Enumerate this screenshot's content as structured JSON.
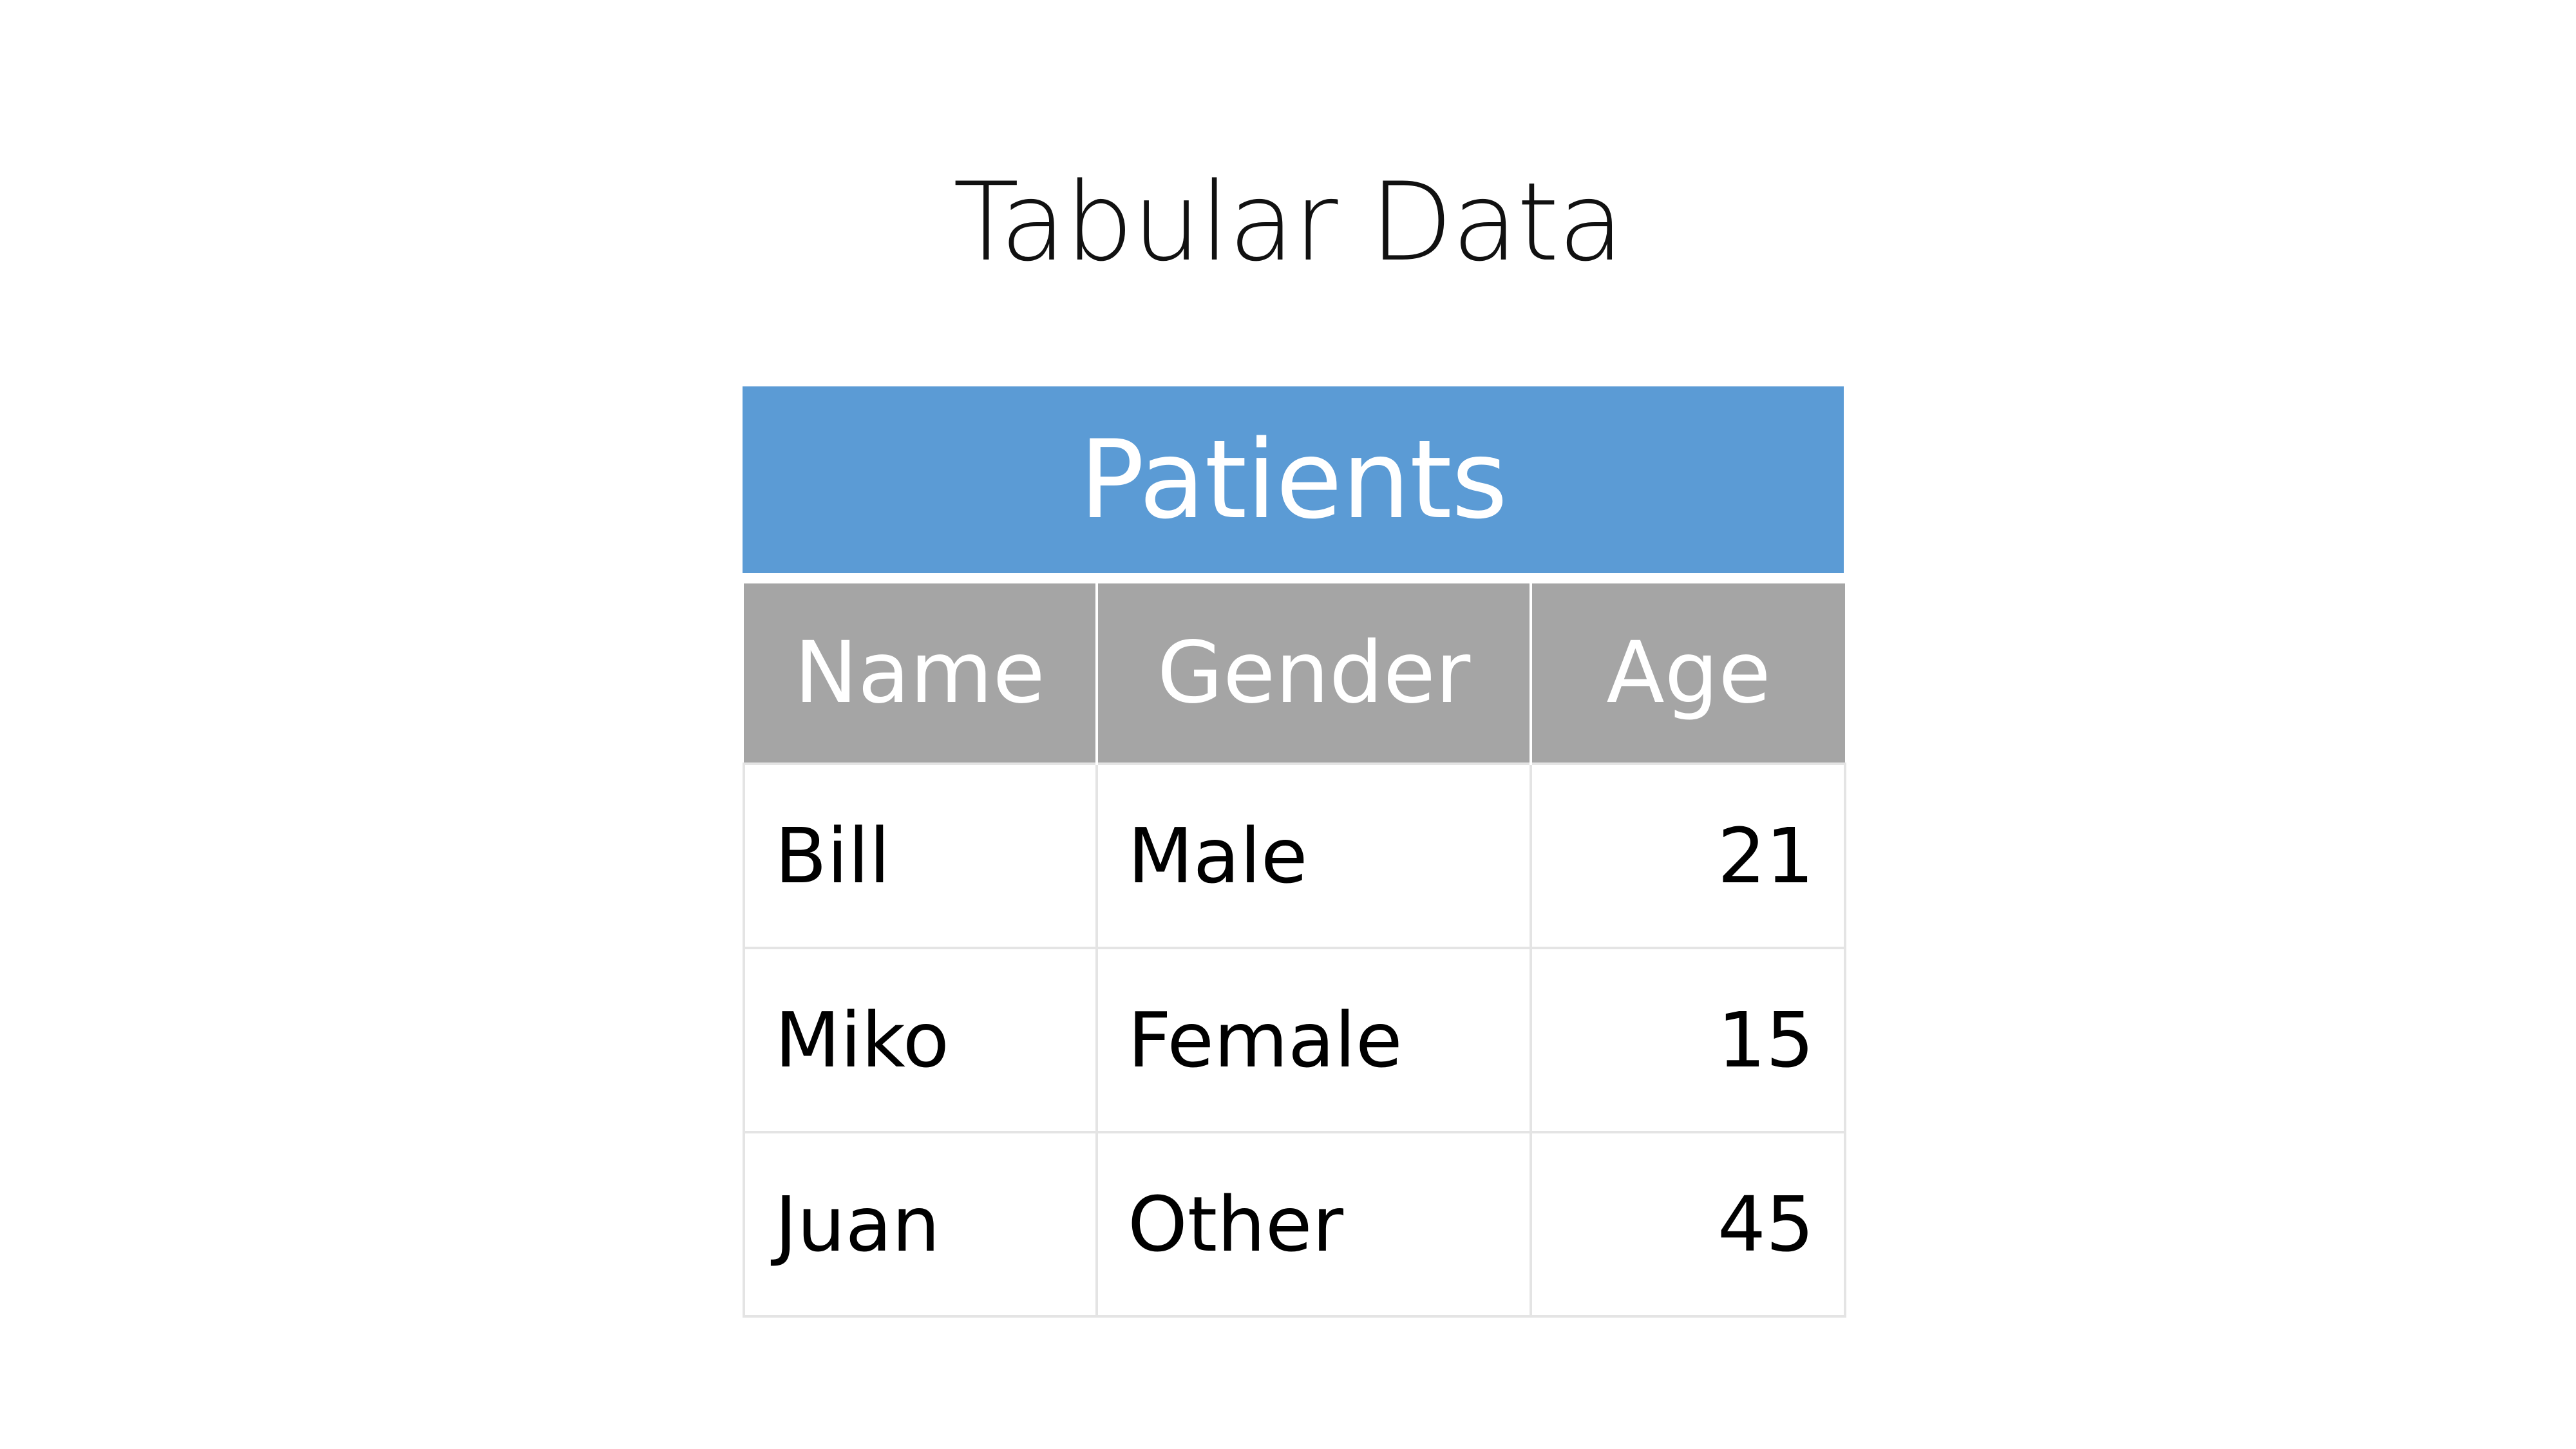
{
  "title": "Tabular Data",
  "table": {
    "caption": "Patients",
    "headers": [
      "Name",
      "Gender",
      "Age"
    ],
    "rows": [
      [
        "Bill",
        "Male",
        "21"
      ],
      [
        "Miko",
        "Female",
        "15"
      ],
      [
        "Juan",
        "Other",
        "45"
      ]
    ]
  },
  "colors": {
    "caption_bg": "#5b9bd5",
    "header_bg": "#a5a5a5",
    "grid_line": "#e4e4e4"
  }
}
